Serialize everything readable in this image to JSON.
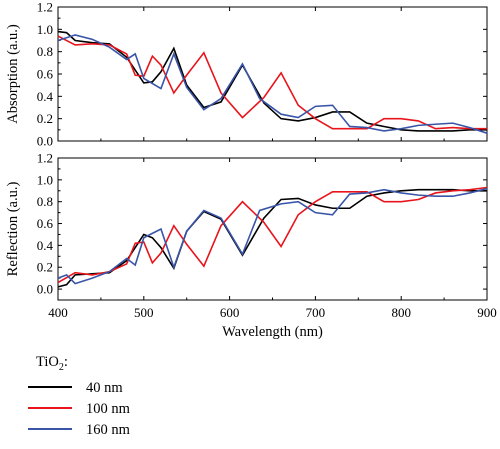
{
  "chart_data": {
    "type": "line",
    "x_label": "Wavelength (nm)",
    "xlim": [
      400,
      900
    ],
    "x_ticks": [
      400,
      500,
      600,
      700,
      800,
      900
    ],
    "legend": {
      "title_main": "TiO",
      "title_sub": "2",
      "title_suffix": ":",
      "entries": [
        "40 nm",
        "100 nm",
        "160 nm"
      ]
    },
    "colors": [
      "#000000",
      "#e8141c",
      "#3a55a8"
    ],
    "panels": [
      {
        "ylabel": "Absorption (a.u.)",
        "ylim": [
          0,
          1.2
        ],
        "y_ticks": [
          "0.0",
          "0.2",
          "0.4",
          "0.6",
          "0.8",
          "1.0",
          "1.2"
        ],
        "series": [
          {
            "name": "40 nm",
            "x": [
              400,
              410,
              420,
              440,
              460,
              480,
              500,
              510,
              520,
              535,
              550,
              570,
              590,
              615,
              640,
              660,
              680,
              700,
              720,
              740,
              760,
              780,
              800,
              820,
              840,
              860,
              880,
              900
            ],
            "y": [
              0.98,
              0.97,
              0.9,
              0.88,
              0.87,
              0.75,
              0.52,
              0.53,
              0.62,
              0.83,
              0.5,
              0.3,
              0.35,
              0.68,
              0.34,
              0.2,
              0.18,
              0.21,
              0.26,
              0.26,
              0.16,
              0.13,
              0.1,
              0.09,
              0.09,
              0.09,
              0.1,
              0.1
            ]
          },
          {
            "name": "100 nm",
            "x": [
              400,
              420,
              440,
              460,
              480,
              490,
              500,
              510,
              520,
              535,
              550,
              570,
              590,
              615,
              640,
              660,
              680,
              700,
              720,
              740,
              760,
              780,
              800,
              820,
              840,
              860,
              880,
              900
            ],
            "y": [
              0.94,
              0.86,
              0.87,
              0.86,
              0.78,
              0.59,
              0.58,
              0.76,
              0.68,
              0.43,
              0.59,
              0.79,
              0.43,
              0.21,
              0.39,
              0.61,
              0.32,
              0.2,
              0.11,
              0.11,
              0.11,
              0.2,
              0.2,
              0.18,
              0.11,
              0.12,
              0.11,
              0.11
            ]
          },
          {
            "name": "160 nm",
            "x": [
              400,
              420,
              440,
              460,
              480,
              490,
              500,
              520,
              535,
              550,
              570,
              590,
              615,
              635,
              660,
              680,
              700,
              720,
              740,
              760,
              780,
              800,
              820,
              840,
              860,
              880,
              900
            ],
            "y": [
              0.9,
              0.95,
              0.91,
              0.84,
              0.73,
              0.78,
              0.56,
              0.47,
              0.78,
              0.48,
              0.28,
              0.38,
              0.69,
              0.38,
              0.24,
              0.21,
              0.31,
              0.32,
              0.13,
              0.12,
              0.09,
              0.11,
              0.14,
              0.15,
              0.16,
              0.12,
              0.07
            ]
          }
        ]
      },
      {
        "ylabel": "Reflection (a.u.)",
        "ylim": [
          -0.1,
          1.2
        ],
        "y_ticks": [
          "0.0",
          "0.2",
          "0.4",
          "0.6",
          "0.8",
          "1.0",
          "1.2"
        ],
        "series": [
          {
            "name": "40 nm",
            "x": [
              400,
              410,
              420,
              440,
              460,
              480,
              500,
              510,
              520,
              535,
              550,
              570,
              590,
              615,
              640,
              660,
              680,
              700,
              720,
              740,
              760,
              780,
              800,
              820,
              840,
              860,
              880,
              900
            ],
            "y": [
              0.02,
              0.04,
              0.13,
              0.14,
              0.15,
              0.26,
              0.5,
              0.47,
              0.38,
              0.19,
              0.53,
              0.71,
              0.64,
              0.31,
              0.65,
              0.82,
              0.83,
              0.77,
              0.74,
              0.74,
              0.85,
              0.88,
              0.9,
              0.91,
              0.91,
              0.91,
              0.9,
              0.9
            ]
          },
          {
            "name": "100 nm",
            "x": [
              400,
              420,
              440,
              460,
              480,
              490,
              500,
              510,
              520,
              535,
              550,
              570,
              590,
              615,
              640,
              660,
              680,
              700,
              720,
              740,
              760,
              780,
              800,
              820,
              840,
              860,
              880,
              900
            ],
            "y": [
              0.06,
              0.15,
              0.13,
              0.16,
              0.23,
              0.42,
              0.43,
              0.24,
              0.33,
              0.58,
              0.41,
              0.21,
              0.58,
              0.8,
              0.61,
              0.39,
              0.68,
              0.8,
              0.89,
              0.89,
              0.89,
              0.8,
              0.8,
              0.82,
              0.88,
              0.9,
              0.91,
              0.93
            ]
          },
          {
            "name": "160 nm",
            "x": [
              400,
              410,
              420,
              440,
              460,
              480,
              490,
              500,
              520,
              535,
              550,
              570,
              590,
              615,
              635,
              660,
              680,
              700,
              720,
              740,
              760,
              780,
              800,
              820,
              840,
              860,
              880,
              900
            ],
            "y": [
              0.1,
              0.13,
              0.05,
              0.1,
              0.16,
              0.28,
              0.22,
              0.47,
              0.55,
              0.2,
              0.53,
              0.72,
              0.65,
              0.32,
              0.72,
              0.78,
              0.8,
              0.7,
              0.68,
              0.87,
              0.88,
              0.91,
              0.88,
              0.86,
              0.85,
              0.85,
              0.88,
              0.92
            ]
          }
        ]
      }
    ]
  }
}
